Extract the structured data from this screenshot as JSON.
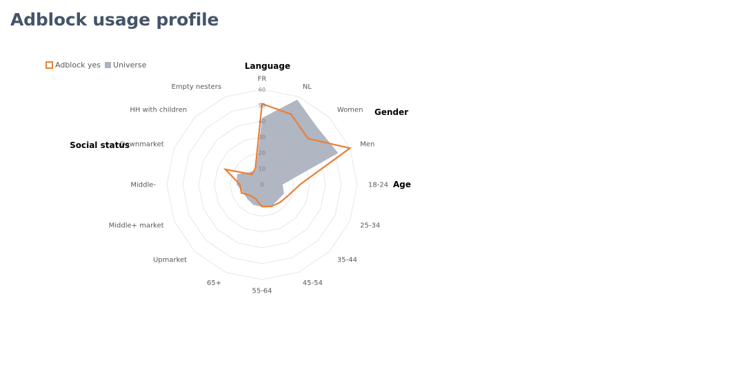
{
  "title": "Adblock usage profile",
  "legend": {
    "adblock_label": "Adblock yes",
    "universe_label": "Universe"
  },
  "chart_data": {
    "type": "radar",
    "categories": [
      "FR",
      "NL",
      "Women",
      "Men",
      "18-24",
      "25-34",
      "35-44",
      "45-54",
      "55-64",
      "65+",
      "Upmarket",
      "Middle+ market",
      "Middle-",
      "Downmarket",
      "HH with children",
      "Empty nesters"
    ],
    "group_labels": [
      {
        "label": "Language",
        "anchor": "FR"
      },
      {
        "label": "Gender",
        "anchor": "Women"
      },
      {
        "label": "Age",
        "anchor": "18-24"
      },
      {
        "label": "Social status",
        "anchor": "Downmarket"
      }
    ],
    "rlim": [
      0,
      60
    ],
    "ticks": [
      0,
      10,
      20,
      30,
      40,
      50,
      60
    ],
    "grid": true,
    "legend_position": "top-left",
    "series": [
      {
        "name": "Universe",
        "style": "filled",
        "color": "#acb2bf",
        "values": [
          42,
          58,
          50,
          52,
          13,
          15,
          14,
          15,
          14,
          14,
          13,
          13,
          16,
          17,
          11,
          10
        ]
      },
      {
        "name": "Adblock yes",
        "style": "line",
        "color": "#ed7d31",
        "values": [
          51,
          48,
          41,
          60,
          24,
          18,
          16,
          15,
          14,
          10,
          10,
          14,
          14,
          25,
          9,
          11
        ]
      }
    ]
  }
}
